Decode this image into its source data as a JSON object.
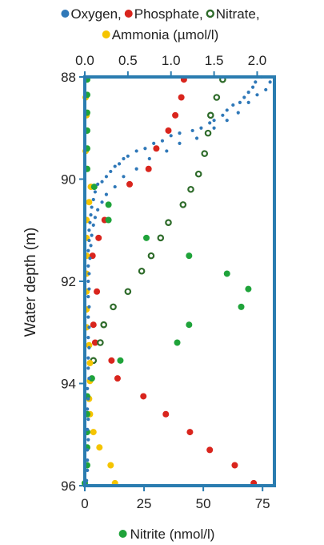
{
  "chart_data": {
    "type": "scatter",
    "legend_top": [
      {
        "name": "Oxygen,",
        "color": "#2f78b8",
        "marker": "dot"
      },
      {
        "name": "Phosphate,",
        "color": "#d9251d",
        "marker": "dot"
      },
      {
        "name": "Nitrate,",
        "color": "#2e6b2a",
        "marker": "ring"
      },
      {
        "name": "Ammonia (µmol/l)",
        "color": "#f5c400",
        "marker": "dot"
      }
    ],
    "legend_bottom": {
      "name": "Nitrite (nmol/l)",
      "color": "#1fa33a",
      "marker": "dot"
    },
    "ylabel": "Water depth (m)",
    "ylim": [
      88,
      96
    ],
    "yticks": [
      "88",
      "90",
      "92",
      "94",
      "96"
    ],
    "top_axis": {
      "lim": [
        0,
        2.2
      ],
      "ticks": [
        "0.0",
        "0.5",
        "1.0",
        "1.5",
        "2.0"
      ]
    },
    "bottom_axis": {
      "lim": [
        0,
        80
      ],
      "ticks": [
        "0",
        "25",
        "50",
        "75"
      ]
    },
    "series": [
      {
        "name": "Phosphate,",
        "axis": "top",
        "color": "#d9251d",
        "points": [
          [
            1.15,
            88.05
          ],
          [
            1.12,
            88.4
          ],
          [
            1.05,
            88.75
          ],
          [
            0.97,
            89.05
          ],
          [
            0.83,
            89.4
          ],
          [
            0.74,
            89.8
          ],
          [
            0.52,
            90.1
          ],
          [
            0.23,
            90.8
          ],
          [
            0.16,
            91.15
          ],
          [
            0.09,
            91.5
          ],
          [
            0.14,
            92.2
          ],
          [
            0.1,
            92.85
          ],
          [
            0.12,
            93.2
          ],
          [
            0.31,
            93.55
          ],
          [
            0.38,
            93.9
          ],
          [
            0.68,
            94.25
          ],
          [
            0.94,
            94.6
          ],
          [
            1.22,
            94.95
          ],
          [
            1.45,
            95.3
          ],
          [
            1.74,
            95.6
          ],
          [
            1.96,
            95.95
          ]
        ]
      },
      {
        "name": "Nitrate,",
        "axis": "top",
        "color": "#2e6b2a",
        "points": [
          [
            1.6,
            88.05
          ],
          [
            1.53,
            88.4
          ],
          [
            1.46,
            88.75
          ],
          [
            1.43,
            89.1
          ],
          [
            1.39,
            89.5
          ],
          [
            1.32,
            89.9
          ],
          [
            1.23,
            90.2
          ],
          [
            1.14,
            90.5
          ],
          [
            0.97,
            90.85
          ],
          [
            0.88,
            91.15
          ],
          [
            0.77,
            91.5
          ],
          [
            0.66,
            91.8
          ],
          [
            0.5,
            92.2
          ],
          [
            0.33,
            92.5
          ],
          [
            0.22,
            92.85
          ],
          [
            0.18,
            93.2
          ],
          [
            0.1,
            93.55
          ]
        ]
      },
      {
        "name": "Ammonia (µmol/l)",
        "axis": "top",
        "color": "#f5c400",
        "points": [
          [
            0.02,
            88.05
          ],
          [
            0.01,
            88.4
          ],
          [
            0.02,
            88.75
          ],
          [
            0.02,
            89.05
          ],
          [
            0.01,
            89.45
          ],
          [
            0.02,
            89.8
          ],
          [
            0.07,
            90.15
          ],
          [
            0.05,
            90.45
          ],
          [
            0.02,
            90.8
          ],
          [
            0.02,
            91.15
          ],
          [
            0.02,
            91.5
          ],
          [
            0.02,
            91.85
          ],
          [
            0.02,
            92.2
          ],
          [
            0.02,
            92.55
          ],
          [
            0.02,
            92.9
          ],
          [
            0.05,
            93.25
          ],
          [
            0.06,
            93.6
          ],
          [
            0.06,
            93.95
          ],
          [
            0.05,
            94.3
          ],
          [
            0.06,
            94.6
          ],
          [
            0.1,
            94.95
          ],
          [
            0.17,
            95.25
          ],
          [
            0.3,
            95.6
          ],
          [
            0.35,
            95.95
          ]
        ]
      },
      {
        "name": "Nitrite (nmol/l)",
        "axis": "bottom",
        "color": "#1fa33a",
        "points": [
          [
            1,
            88.05
          ],
          [
            1,
            88.35
          ],
          [
            1,
            88.7
          ],
          [
            1,
            89.05
          ],
          [
            1,
            89.4
          ],
          [
            1,
            89.8
          ],
          [
            4,
            90.15
          ],
          [
            10,
            90.5
          ],
          [
            10,
            90.8
          ],
          [
            26,
            91.15
          ],
          [
            44,
            91.5
          ],
          [
            60,
            91.85
          ],
          [
            69,
            92.15
          ],
          [
            66,
            92.5
          ],
          [
            44,
            92.85
          ],
          [
            39,
            93.2
          ],
          [
            15,
            93.55
          ],
          [
            3,
            93.9
          ],
          [
            1,
            94.25
          ],
          [
            1,
            94.6
          ],
          [
            1,
            94.95
          ],
          [
            1,
            95.25
          ],
          [
            1,
            95.6
          ],
          [
            0,
            95.95
          ]
        ]
      },
      {
        "name": "Oxygen,",
        "axis": "top",
        "color": "#2f78b8",
        "points": [
          [
            2.05,
            88.0
          ],
          [
            2.15,
            88.1
          ],
          [
            1.98,
            88.1
          ],
          [
            1.95,
            88.2
          ],
          [
            2.1,
            88.25
          ],
          [
            1.9,
            88.3
          ],
          [
            1.85,
            88.4
          ],
          [
            2.0,
            88.35
          ],
          [
            1.8,
            88.5
          ],
          [
            1.72,
            88.55
          ],
          [
            1.9,
            88.5
          ],
          [
            1.65,
            88.65
          ],
          [
            1.6,
            88.75
          ],
          [
            1.78,
            88.7
          ],
          [
            1.5,
            88.85
          ],
          [
            1.45,
            88.9
          ],
          [
            1.65,
            88.85
          ],
          [
            1.35,
            89.0
          ],
          [
            1.25,
            89.05
          ],
          [
            1.5,
            89.0
          ],
          [
            1.1,
            89.1
          ],
          [
            1.0,
            89.15
          ],
          [
            1.3,
            89.2
          ],
          [
            0.9,
            89.25
          ],
          [
            0.8,
            89.3
          ],
          [
            1.1,
            89.3
          ],
          [
            0.7,
            89.4
          ],
          [
            0.6,
            89.45
          ],
          [
            0.95,
            89.45
          ],
          [
            0.5,
            89.55
          ],
          [
            0.45,
            89.6
          ],
          [
            0.75,
            89.6
          ],
          [
            0.4,
            89.7
          ],
          [
            0.35,
            89.75
          ],
          [
            0.6,
            89.8
          ],
          [
            0.3,
            89.85
          ],
          [
            0.25,
            89.95
          ],
          [
            0.45,
            89.95
          ],
          [
            0.2,
            90.05
          ],
          [
            0.15,
            90.1
          ],
          [
            0.35,
            90.15
          ],
          [
            0.12,
            90.25
          ],
          [
            0.25,
            90.3
          ],
          [
            0.1,
            90.4
          ],
          [
            0.2,
            90.45
          ],
          [
            0.08,
            90.55
          ],
          [
            0.15,
            90.6
          ],
          [
            0.07,
            90.7
          ],
          [
            0.12,
            90.75
          ],
          [
            0.06,
            90.85
          ],
          [
            0.1,
            90.9
          ],
          [
            0.05,
            91.0
          ],
          [
            0.08,
            91.1
          ],
          [
            0.05,
            91.2
          ],
          [
            0.07,
            91.3
          ],
          [
            0.04,
            91.4
          ],
          [
            0.06,
            91.55
          ],
          [
            0.04,
            91.7
          ],
          [
            0.05,
            91.85
          ],
          [
            0.04,
            92.0
          ],
          [
            0.05,
            92.15
          ],
          [
            0.04,
            92.3
          ],
          [
            0.05,
            92.5
          ],
          [
            0.04,
            92.7
          ],
          [
            0.05,
            92.9
          ],
          [
            0.04,
            93.1
          ],
          [
            0.05,
            93.3
          ],
          [
            0.04,
            93.5
          ],
          [
            0.04,
            93.7
          ],
          [
            0.05,
            93.9
          ],
          [
            0.03,
            94.1
          ],
          [
            0.04,
            94.3
          ],
          [
            0.03,
            94.5
          ],
          [
            0.04,
            94.7
          ],
          [
            0.03,
            94.9
          ],
          [
            0.04,
            95.1
          ],
          [
            0.03,
            95.3
          ],
          [
            0.03,
            95.5
          ],
          [
            0.03,
            95.7
          ],
          [
            0.02,
            95.9
          ]
        ]
      }
    ]
  }
}
